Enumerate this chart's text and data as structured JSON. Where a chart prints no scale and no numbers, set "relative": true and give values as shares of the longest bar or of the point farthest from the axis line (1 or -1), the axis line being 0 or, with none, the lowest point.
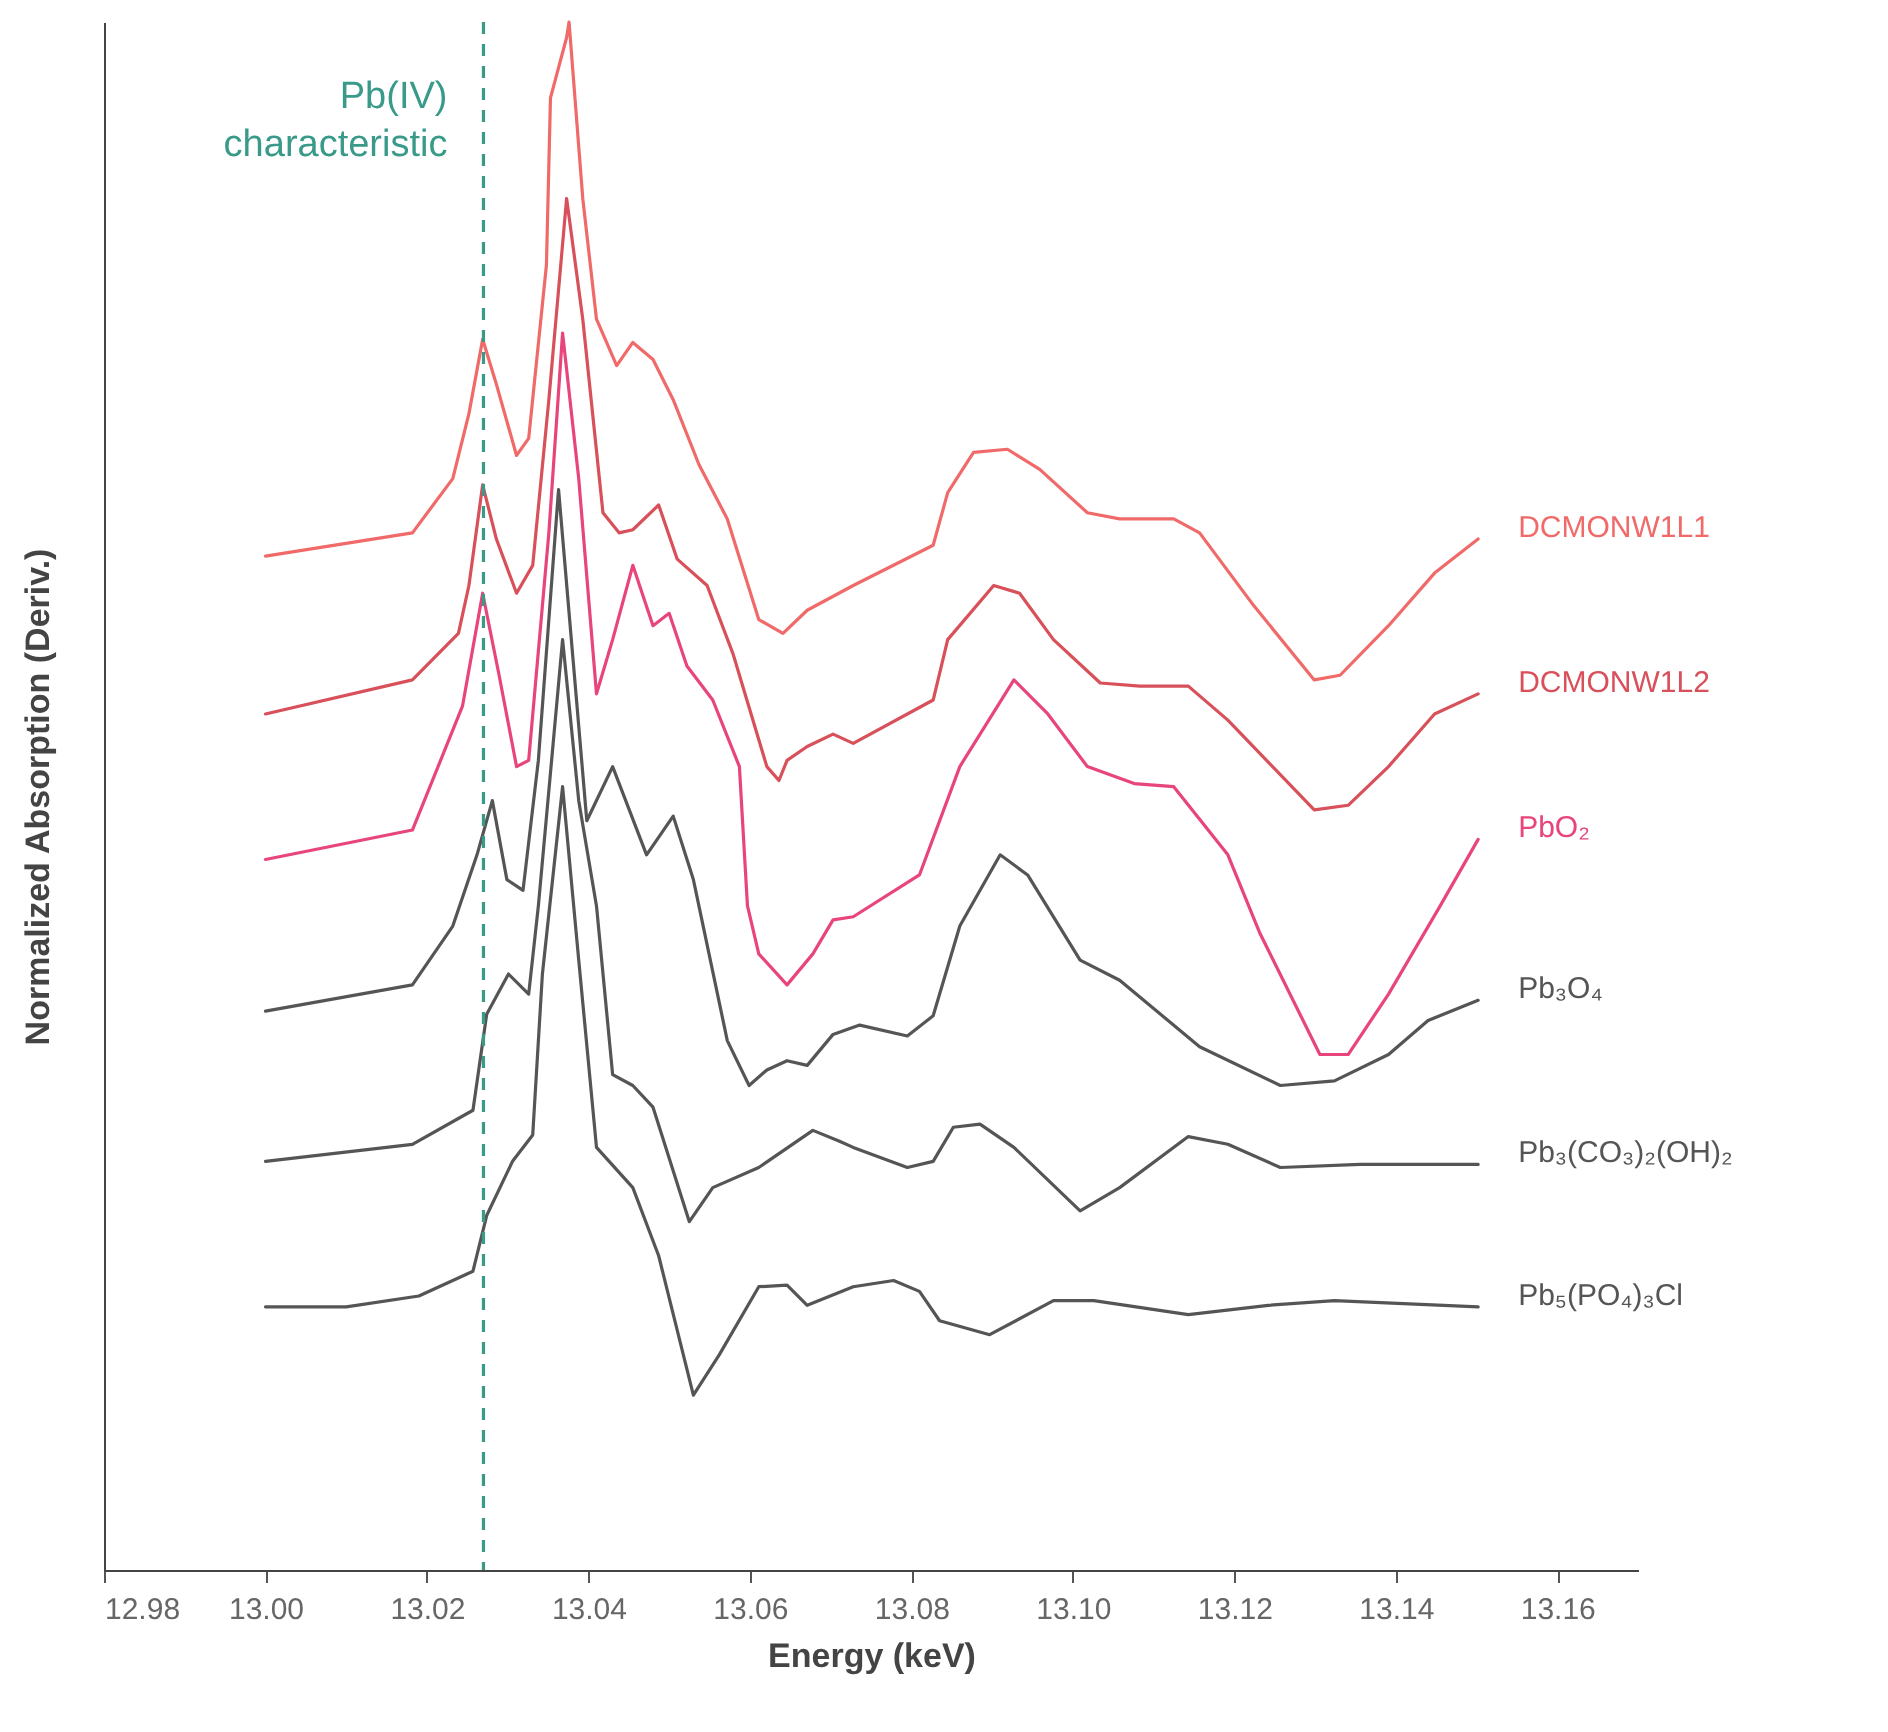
{
  "chart_data": {
    "type": "line",
    "xlabel": "Energy (keV)",
    "ylabel": "Normalized Absorption (Deriv.)",
    "relative": true,
    "grid": false,
    "legend": false,
    "marker": "none",
    "line_style": "solid",
    "xlim": [
      12.98,
      13.17
    ],
    "xticks": [
      12.98,
      {
        "value": 13,
        "label": "13.00"
      },
      13.02,
      13.04,
      13.06,
      13.08,
      {
        "value": 13.1,
        "label": "13.10"
      },
      13.12,
      13.14,
      13.16
    ],
    "ref_lines": [
      {
        "axis": "x",
        "value": 13.027,
        "label": "Pb(IV)\ncharacteristic",
        "color": "#3a9a8a",
        "line_style": "dashed"
      }
    ],
    "series": [
      {
        "name": "DCMONW1L1",
        "color": "#f06a6a",
        "x": [
          13.0,
          13.0182,
          13.0232,
          13.0252,
          13.0269,
          13.0286,
          13.0311,
          13.0326,
          13.0348,
          13.0353,
          13.0373,
          13.0376,
          13.0393,
          13.041,
          13.0435,
          13.0455,
          13.048,
          13.0505,
          13.0537,
          13.0572,
          13.0611,
          13.0641,
          13.0671,
          13.0728,
          13.0827,
          13.0845,
          13.0877,
          13.0919,
          13.0959,
          13.1018,
          13.1058,
          13.1125,
          13.1157,
          13.1224,
          13.1299,
          13.1331,
          13.1391,
          13.1448,
          13.1502
        ],
        "values": [
          0.655,
          0.67,
          0.705,
          0.747,
          0.795,
          0.766,
          0.72,
          0.731,
          0.843,
          0.951,
          0.99,
          1.0,
          0.886,
          0.808,
          0.778,
          0.793,
          0.782,
          0.756,
          0.714,
          0.679,
          0.614,
          0.605,
          0.62,
          0.636,
          0.662,
          0.696,
          0.722,
          0.724,
          0.711,
          0.683,
          0.679,
          0.679,
          0.67,
          0.623,
          0.575,
          0.578,
          0.61,
          0.644,
          0.666
        ]
      },
      {
        "name": "DCMONW1L2",
        "color": "#d8505a",
        "x": [
          13.0,
          13.0182,
          13.0239,
          13.0252,
          13.0269,
          13.0286,
          13.0311,
          13.0331,
          13.0351,
          13.0373,
          13.0393,
          13.0418,
          13.0438,
          13.0455,
          13.0487,
          13.051,
          13.0547,
          13.0579,
          13.0621,
          13.0636,
          13.0646,
          13.0671,
          13.0703,
          13.0728,
          13.0827,
          13.0845,
          13.0902,
          13.0934,
          13.0976,
          13.1034,
          13.1083,
          13.1143,
          13.1192,
          13.1299,
          13.1341,
          13.1391,
          13.1448,
          13.1502
        ],
        "values": [
          0.553,
          0.575,
          0.605,
          0.636,
          0.701,
          0.666,
          0.631,
          0.649,
          0.756,
          0.886,
          0.808,
          0.683,
          0.67,
          0.672,
          0.688,
          0.653,
          0.636,
          0.592,
          0.519,
          0.51,
          0.523,
          0.532,
          0.54,
          0.534,
          0.562,
          0.601,
          0.636,
          0.631,
          0.601,
          0.573,
          0.571,
          0.571,
          0.549,
          0.491,
          0.494,
          0.519,
          0.553,
          0.566
        ]
      },
      {
        "name": "PbO₂",
        "color": "#e8457a",
        "x": [
          13.0,
          13.0182,
          13.0244,
          13.0269,
          13.0289,
          13.0311,
          13.0326,
          13.0351,
          13.0368,
          13.0388,
          13.041,
          13.043,
          13.0455,
          13.048,
          13.05,
          13.0522,
          13.0554,
          13.0587,
          13.0597,
          13.0611,
          13.0646,
          13.0678,
          13.0703,
          13.0728,
          13.081,
          13.086,
          13.0927,
          13.0969,
          13.1018,
          13.1076,
          13.1125,
          13.1192,
          13.1232,
          13.1306,
          13.1341,
          13.1391,
          13.1455,
          13.1502
        ],
        "values": [
          0.459,
          0.478,
          0.558,
          0.631,
          0.579,
          0.519,
          0.523,
          0.67,
          0.799,
          0.705,
          0.566,
          0.601,
          0.649,
          0.61,
          0.618,
          0.584,
          0.562,
          0.519,
          0.429,
          0.398,
          0.378,
          0.398,
          0.42,
          0.422,
          0.449,
          0.519,
          0.575,
          0.553,
          0.519,
          0.508,
          0.506,
          0.462,
          0.411,
          0.333,
          0.333,
          0.372,
          0.429,
          0.472
        ]
      },
      {
        "name": "Pb₃O₄",
        "color": "#555555",
        "x": [
          13.0,
          13.0182,
          13.0232,
          13.0262,
          13.0281,
          13.0299,
          13.0319,
          13.0338,
          13.0363,
          13.0381,
          13.0398,
          13.043,
          13.0472,
          13.0505,
          13.053,
          13.0572,
          13.0599,
          13.0621,
          13.0646,
          13.0671,
          13.0703,
          13.0736,
          13.0795,
          13.0827,
          13.086,
          13.091,
          13.0944,
          13.1009,
          13.1058,
          13.1157,
          13.1257,
          13.1324,
          13.1391,
          13.144,
          13.1502
        ],
        "values": [
          0.361,
          0.378,
          0.416,
          0.462,
          0.497,
          0.446,
          0.439,
          0.523,
          0.698,
          0.588,
          0.484,
          0.519,
          0.462,
          0.487,
          0.446,
          0.342,
          0.313,
          0.323,
          0.329,
          0.326,
          0.346,
          0.352,
          0.345,
          0.358,
          0.416,
          0.462,
          0.449,
          0.394,
          0.381,
          0.338,
          0.313,
          0.316,
          0.333,
          0.355,
          0.368
        ]
      },
      {
        "name": "Pb₃(CO₃)₂(OH)₂",
        "color": "#555555",
        "x": [
          13.0,
          13.0182,
          13.0257,
          13.0274,
          13.0301,
          13.0326,
          13.0338,
          13.0368,
          13.0388,
          13.041,
          13.043,
          13.0455,
          13.048,
          13.0525,
          13.0554,
          13.0611,
          13.0678,
          13.0711,
          13.0728,
          13.0795,
          13.0827,
          13.0852,
          13.0885,
          13.0927,
          13.1009,
          13.1058,
          13.1143,
          13.1192,
          13.1257,
          13.1356,
          13.1502
        ],
        "values": [
          0.264,
          0.275,
          0.297,
          0.359,
          0.385,
          0.372,
          0.429,
          0.601,
          0.497,
          0.429,
          0.32,
          0.313,
          0.299,
          0.225,
          0.247,
          0.26,
          0.284,
          0.277,
          0.273,
          0.26,
          0.264,
          0.286,
          0.288,
          0.273,
          0.232,
          0.247,
          0.28,
          0.275,
          0.26,
          0.262,
          0.262
        ]
      },
      {
        "name": "Pb₅(PO₄)₃Cl",
        "color": "#555555",
        "x": [
          13.0,
          13.01,
          13.019,
          13.0257,
          13.0274,
          13.0306,
          13.0331,
          13.0343,
          13.0368,
          13.0388,
          13.041,
          13.0455,
          13.0487,
          13.053,
          13.0562,
          13.0611,
          13.0646,
          13.0671,
          13.0728,
          13.0778,
          13.081,
          13.0835,
          13.0897,
          13.0976,
          13.1026,
          13.1143,
          13.1242,
          13.1324,
          13.1502
        ],
        "values": [
          0.17,
          0.17,
          0.177,
          0.193,
          0.229,
          0.264,
          0.281,
          0.385,
          0.506,
          0.394,
          0.273,
          0.247,
          0.203,
          0.113,
          0.139,
          0.183,
          0.184,
          0.171,
          0.183,
          0.187,
          0.18,
          0.161,
          0.152,
          0.174,
          0.174,
          0.165,
          0.171,
          0.174,
          0.17
        ]
      }
    ]
  }
}
